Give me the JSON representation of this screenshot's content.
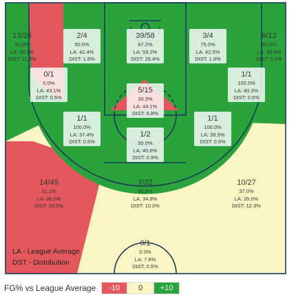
{
  "colors": {
    "above": "#2aa33c",
    "average": "#fbf6c4",
    "below": "#e4575c",
    "court_lines": "#1a3a5a",
    "label_bg": "#ffffff"
  },
  "chart_data": {
    "type": "heatmap",
    "notes": [
      "LA - League Average",
      "DST - Distribution"
    ],
    "legend": {
      "title": "FG% vs League Average",
      "items": [
        {
          "label": "-10",
          "color": "#e4575c",
          "text_color": "#ffffff"
        },
        {
          "label": "0",
          "color": "#fbf6c4",
          "text_color": "#333333"
        },
        {
          "label": "+10",
          "color": "#2aa33c",
          "text_color": "#ffffff"
        }
      ]
    },
    "zones": [
      {
        "id": "left-corner-three",
        "fg": "13/26",
        "pct": "50.0%",
        "la": "LA: 38.1%",
        "dist": "DIST: 11.8%",
        "rating": "above"
      },
      {
        "id": "left-wing-three",
        "fg": "2/4",
        "pct": "50.0%",
        "la": "LA: 42.4%",
        "dist": "DIST: 1.8%",
        "rating": "above"
      },
      {
        "id": "top-three",
        "fg": "39/58",
        "pct": "67.2%",
        "la": "LA: 59.2%",
        "dist": "DIST: 26.4%",
        "rating": "above"
      },
      {
        "id": "right-wing-three",
        "fg": "3/4",
        "pct": "75.0%",
        "la": "LA: 42.5%",
        "dist": "DIST: 1.8%",
        "rating": "above"
      },
      {
        "id": "right-corner-three",
        "fg": "6/12",
        "pct": "50.0%",
        "la": "LA: 38.9%",
        "dist": "DIST: 5.5%",
        "rating": "above"
      },
      {
        "id": "left-baseline-mid",
        "fg": "0/1",
        "pct": "0.0%",
        "la": "LA: 43.1%",
        "dist": "DIST: 0.5%",
        "rating": "below"
      },
      {
        "id": "paint-upper",
        "fg": "5/15",
        "pct": "33.3%",
        "la": "LA: 44.1%",
        "dist": "DIST: 6.8%",
        "rating": "below"
      },
      {
        "id": "right-baseline-mid",
        "fg": "1/1",
        "pct": "100.0%",
        "la": "LA: 40.3%",
        "dist": "DIST: 0.5%",
        "rating": "above"
      },
      {
        "id": "left-wing-mid",
        "fg": "1/1",
        "pct": "100.0%",
        "la": "LA: 37.4%",
        "dist": "DIST: 0.5%",
        "rating": "above"
      },
      {
        "id": "top-mid",
        "fg": "1/2",
        "pct": "50.0%",
        "la": "LA: 40.6%",
        "dist": "DIST: 0.9%",
        "rating": "above"
      },
      {
        "id": "right-wing-mid",
        "fg": "1/1",
        "pct": "100.0%",
        "la": "LA: 39.5%",
        "dist": "DIST: 0.5%",
        "rating": "above"
      },
      {
        "id": "left-deep-three",
        "fg": "14/45",
        "pct": "31.1%",
        "la": "LA: 36.0%",
        "dist": "DIST: 20.5%",
        "rating": "below"
      },
      {
        "id": "center-deep-three",
        "fg": "7/22",
        "pct": "31.8%",
        "la": "LA: 34.8%",
        "dist": "DIST: 10.0%",
        "rating": "average"
      },
      {
        "id": "right-deep-three",
        "fg": "10/27",
        "pct": "37.0%",
        "la": "LA: 35.0%",
        "dist": "DIST: 12.3%",
        "rating": "average"
      },
      {
        "id": "backcourt",
        "fg": "0/1",
        "pct": "0.0%",
        "la": "LA: 7.6%",
        "dist": "DIST: 0.5%",
        "rating": "average"
      }
    ]
  }
}
